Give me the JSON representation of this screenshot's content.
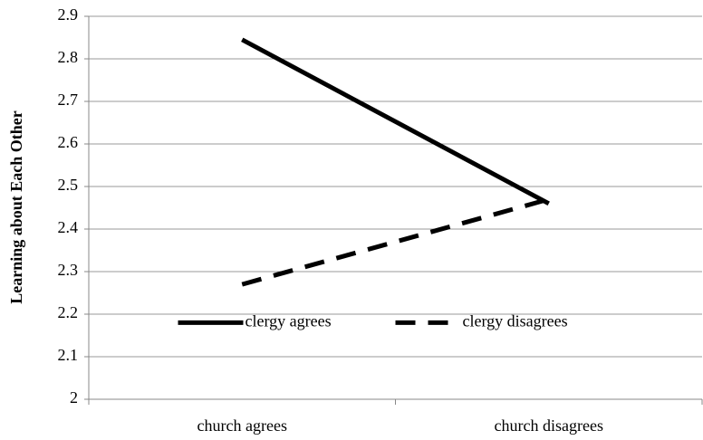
{
  "chart_data": {
    "type": "line",
    "y_label": "Learning about Each Other",
    "categories": [
      "church agrees",
      "church disagrees"
    ],
    "series": [
      {
        "name": "clergy agrees",
        "color": "#000000",
        "dash": "solid",
        "values": [
          2.845,
          2.46
        ]
      },
      {
        "name": "clergy disagrees",
        "color": "#000000",
        "dash": "dashed",
        "values": [
          2.27,
          2.47
        ]
      }
    ],
    "ylim": [
      2,
      2.9
    ],
    "yticks": [
      2,
      2.1,
      2.2,
      2.3,
      2.4,
      2.5,
      2.6,
      2.7,
      2.8,
      2.9
    ],
    "grid": true,
    "legend": "lower center"
  }
}
